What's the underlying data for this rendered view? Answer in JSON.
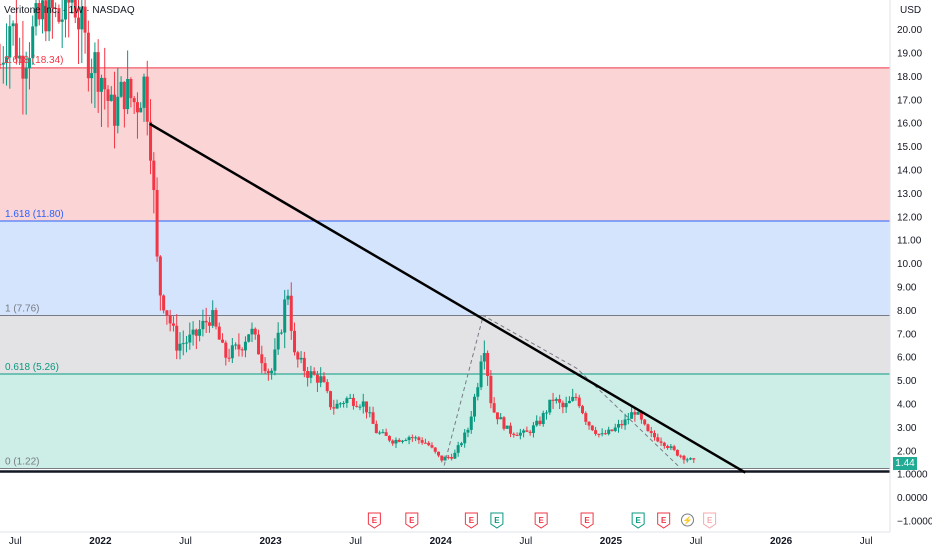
{
  "header": {
    "symbol_title": "Veritone Inc. · 1W · NASDAQ",
    "overlay_text": "2.618 (18.34)"
  },
  "chart_data": {
    "type": "candlestick",
    "ylabel": "USD",
    "ylim": [
      -1.0,
      21.2
    ],
    "y_ticks": [
      "20.00",
      "19.00",
      "18.00",
      "17.00",
      "16.00",
      "15.00",
      "14.00",
      "13.00",
      "12.00",
      "11.00",
      "10.00",
      "9.00",
      "8.00",
      "7.00",
      "6.00",
      "5.00",
      "4.00",
      "3.00",
      "2.00",
      "1.0000",
      "0.0000",
      "−1.0000"
    ],
    "y_tick_values": [
      20,
      19,
      18,
      17,
      16,
      15,
      14,
      13,
      12,
      11,
      10,
      9,
      8,
      7,
      6,
      5,
      4,
      3,
      2,
      1,
      0,
      -1
    ],
    "x_ticks": [
      {
        "label": "Jul",
        "t": 2021.5,
        "year": false
      },
      {
        "label": "2022",
        "t": 2022.0,
        "year": true
      },
      {
        "label": "Jul",
        "t": 2022.5,
        "year": false
      },
      {
        "label": "2023",
        "t": 2023.0,
        "year": true
      },
      {
        "label": "Jul",
        "t": 2023.5,
        "year": false
      },
      {
        "label": "2024",
        "t": 2024.0,
        "year": true
      },
      {
        "label": "Jul",
        "t": 2024.5,
        "year": false
      },
      {
        "label": "2025",
        "t": 2025.0,
        "year": true
      },
      {
        "label": "Jul",
        "t": 2025.5,
        "year": false
      },
      {
        "label": "2026",
        "t": 2026.0,
        "year": true
      },
      {
        "label": "Jul",
        "t": 2026.5,
        "year": false
      }
    ],
    "xlim": [
      2021.41,
      2026.64
    ],
    "last_price": {
      "label": "1.44",
      "value": 1.44
    },
    "fib_levels": [
      {
        "label": "2.618 (18.34)",
        "value": 18.34,
        "color": "#f23645"
      },
      {
        "label": "1.618 (11.80)",
        "value": 11.8,
        "color": "#2962ff"
      },
      {
        "label": "1 (7.76)",
        "value": 7.76,
        "color": "#787b86"
      },
      {
        "label": "0.618 (5.26)",
        "value": 5.26,
        "color": "#089981"
      },
      {
        "label": "0 (1.22)",
        "value": 1.22,
        "color": "#787b86"
      }
    ],
    "fib_zones": [
      {
        "from": 11.8,
        "to": 18.34,
        "color": "#fbd4d6"
      },
      {
        "from": 7.76,
        "to": 11.8,
        "color": "#d4e4fc"
      },
      {
        "from": 5.26,
        "to": 7.76,
        "color": "#e3e3e5"
      },
      {
        "from": 1.22,
        "to": 5.26,
        "color": "#cdeee7"
      }
    ],
    "trendline": {
      "x1": 2022.29,
      "y1": 15.95,
      "x2": 2025.79,
      "y2": 1.22
    },
    "support_line": {
      "value": 1.22
    },
    "dashed_path": [
      [
        2024.02,
        1.35
      ],
      [
        2024.25,
        7.76
      ],
      [
        2024.8,
        5.5
      ],
      [
        2025.4,
        1.3
      ]
    ],
    "events": [
      {
        "label": "E",
        "t": 2023.61,
        "kind": "earnings-past"
      },
      {
        "label": "E",
        "t": 2023.83,
        "kind": "earnings-past"
      },
      {
        "label": "E",
        "t": 2024.18,
        "kind": "earnings-past"
      },
      {
        "label": "E",
        "t": 2024.33,
        "kind": "earnings-beat"
      },
      {
        "label": "E",
        "t": 2024.59,
        "kind": "earnings-past"
      },
      {
        "label": "E",
        "t": 2024.86,
        "kind": "earnings-past"
      },
      {
        "label": "E",
        "t": 2025.16,
        "kind": "earnings-beat"
      },
      {
        "label": "E",
        "t": 2025.31,
        "kind": "earnings-past"
      },
      {
        "label": "⚡",
        "t": 2025.45,
        "kind": "split"
      },
      {
        "label": "E",
        "t": 2025.58,
        "kind": "earnings-future"
      }
    ],
    "candle_anchors": [
      [
        2021.41,
        18.5
      ],
      [
        2021.47,
        20.4
      ],
      [
        2021.53,
        18.6
      ],
      [
        2021.6,
        19.7
      ],
      [
        2021.68,
        20.9
      ],
      [
        2021.76,
        20.4
      ],
      [
        2021.84,
        21.5
      ],
      [
        2021.92,
        19.0
      ],
      [
        2022.0,
        18.2
      ],
      [
        2022.07,
        16.3
      ],
      [
        2022.14,
        17.4
      ],
      [
        2022.21,
        16.8
      ],
      [
        2022.26,
        17.8
      ],
      [
        2022.29,
        15.8
      ],
      [
        2022.32,
        12.0
      ],
      [
        2022.34,
        9.0
      ],
      [
        2022.38,
        8.2
      ],
      [
        2022.45,
        6.5
      ],
      [
        2022.55,
        6.8
      ],
      [
        2022.65,
        7.8
      ],
      [
        2022.73,
        6.0
      ],
      [
        2022.82,
        6.4
      ],
      [
        2022.88,
        7.2
      ],
      [
        2022.94,
        6.1
      ],
      [
        2023.0,
        5.2
      ],
      [
        2023.06,
        7.2
      ],
      [
        2023.1,
        9.0
      ],
      [
        2023.14,
        6.0
      ],
      [
        2023.22,
        5.3
      ],
      [
        2023.3,
        5.0
      ],
      [
        2023.36,
        3.8
      ],
      [
        2023.45,
        4.2
      ],
      [
        2023.55,
        4.0
      ],
      [
        2023.62,
        2.8
      ],
      [
        2023.72,
        2.4
      ],
      [
        2023.82,
        2.6
      ],
      [
        2023.92,
        2.3
      ],
      [
        2024.0,
        1.6
      ],
      [
        2024.08,
        1.8
      ],
      [
        2024.16,
        2.9
      ],
      [
        2024.22,
        5.0
      ],
      [
        2024.25,
        6.9
      ],
      [
        2024.3,
        3.8
      ],
      [
        2024.4,
        2.8
      ],
      [
        2024.5,
        2.7
      ],
      [
        2024.58,
        3.2
      ],
      [
        2024.66,
        4.2
      ],
      [
        2024.72,
        3.8
      ],
      [
        2024.8,
        4.3
      ],
      [
        2024.86,
        3.2
      ],
      [
        2024.94,
        2.6
      ],
      [
        2025.0,
        2.8
      ],
      [
        2025.08,
        3.2
      ],
      [
        2025.14,
        3.7
      ],
      [
        2025.22,
        2.7
      ],
      [
        2025.3,
        2.4
      ],
      [
        2025.38,
        1.9
      ],
      [
        2025.46,
        1.6
      ],
      [
        2025.5,
        1.44
      ]
    ]
  }
}
